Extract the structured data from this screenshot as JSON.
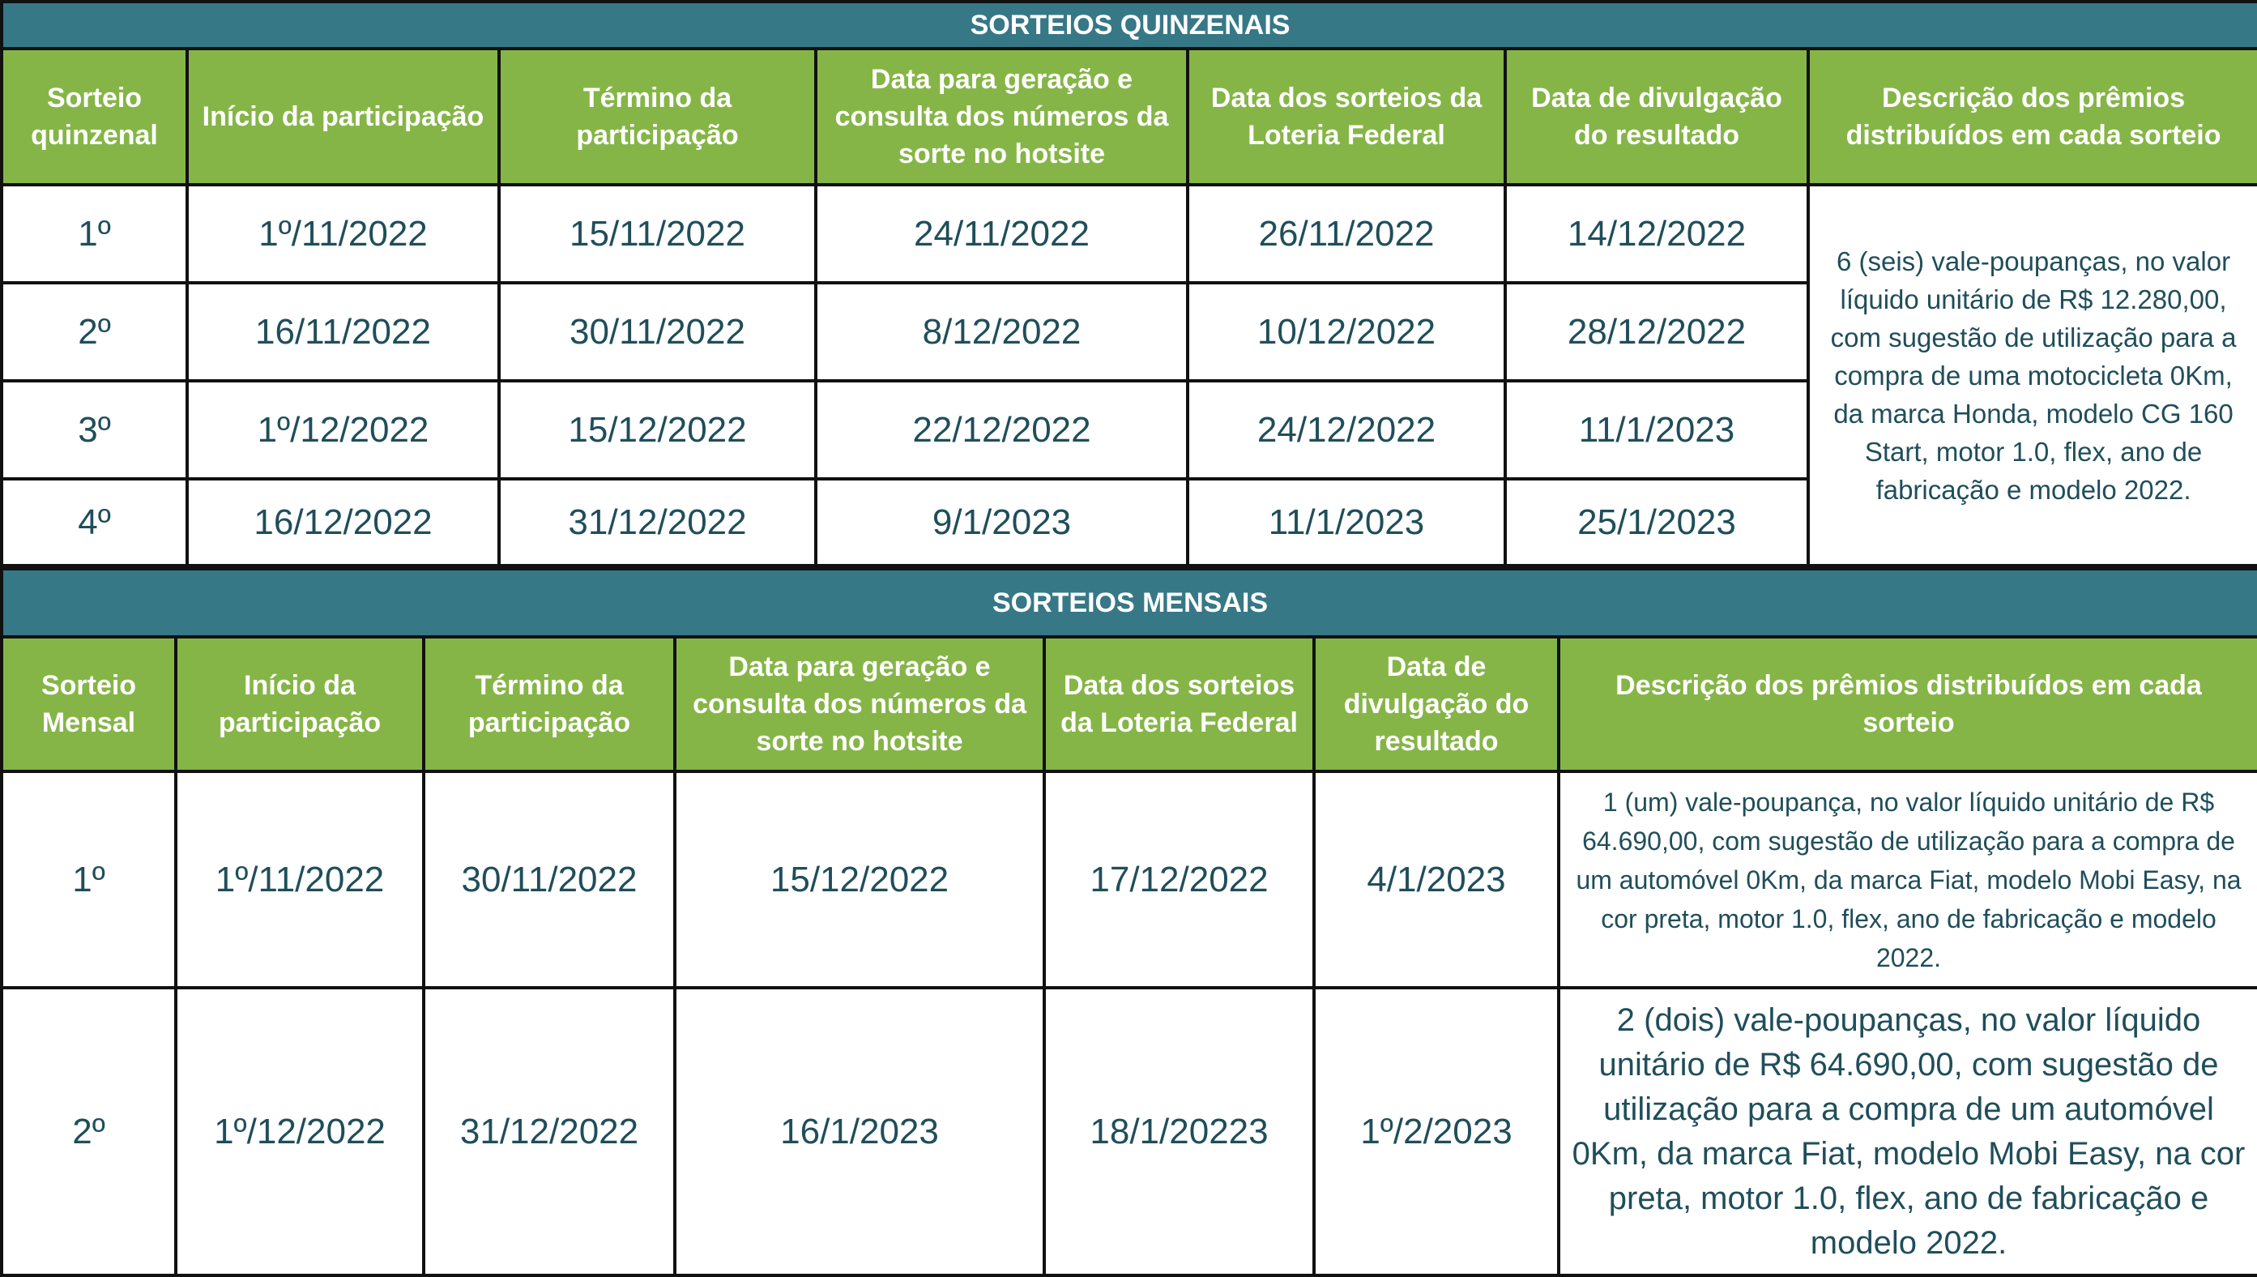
{
  "colors": {
    "title_bg": "#377887",
    "header_bg": "#86b547",
    "text": "#1f4e5a"
  },
  "quinzenal": {
    "title": "SORTEIOS QUINZENAIS",
    "headers": [
      "Sorteio quinzenal",
      "Início da participação",
      "Término da participação",
      "Data para geração e consulta dos números da sorte no hotsite",
      "Data dos sorteios da Loteria Federal",
      "Data de divulgação do resultado",
      "Descrição dos prêmios distribuídos em cada sorteio"
    ],
    "rows": [
      [
        "1º",
        "1º/11/2022",
        "15/11/2022",
        "24/11/2022",
        "26/11/2022",
        "14/12/2022"
      ],
      [
        "2º",
        "16/11/2022",
        "30/11/2022",
        "8/12/2022",
        "10/12/2022",
        "28/12/2022"
      ],
      [
        "3º",
        "1º/12/2022",
        "15/12/2022",
        "22/12/2022",
        "24/12/2022",
        "11/1/2023"
      ],
      [
        "4º",
        "16/12/2022",
        "31/12/2022",
        "9/1/2023",
        "11/1/2023",
        "25/1/2023"
      ]
    ],
    "description": "6 (seis) vale-poupanças, no valor líquido unitário de R$ 12.280,00, com sugestão de utilização para a compra de uma motocicleta 0Km, da marca Honda, modelo CG 160 Start, motor 1.0, flex, ano de fabricação e modelo 2022."
  },
  "mensal": {
    "title": "SORTEIOS MENSAIS",
    "headers": [
      "Sorteio Mensal",
      "Início da participação",
      "Término da participação",
      "Data para geração e consulta dos números da sorte no hotsite",
      "Data dos sorteios da Loteria Federal",
      "Data de divulgação do resultado",
      "Descrição dos prêmios distribuídos em cada sorteio"
    ],
    "rows": [
      {
        "cells": [
          "1º",
          "1º/11/2022",
          "30/11/2022",
          "15/12/2022",
          "17/12/2022",
          "4/1/2023"
        ],
        "description": "1 (um) vale-poupança, no valor líquido unitário de R$ 64.690,00, com sugestão de utilização para a compra de um automóvel 0Km, da marca Fiat, modelo Mobi Easy, na cor preta, motor 1.0, flex, ano de fabricação e modelo 2022."
      },
      {
        "cells": [
          "2º",
          "1º/12/2022",
          "31/12/2022",
          "16/1/2023",
          "18/1/20223",
          "1º/2/2023"
        ],
        "description": "2 (dois) vale-poupanças, no valor líquido unitário de R$ 64.690,00, com sugestão de utilização para a compra de um automóvel 0Km, da marca Fiat, modelo Mobi Easy, na cor preta, motor 1.0, flex, ano de fabricação e modelo 2022."
      }
    ]
  }
}
